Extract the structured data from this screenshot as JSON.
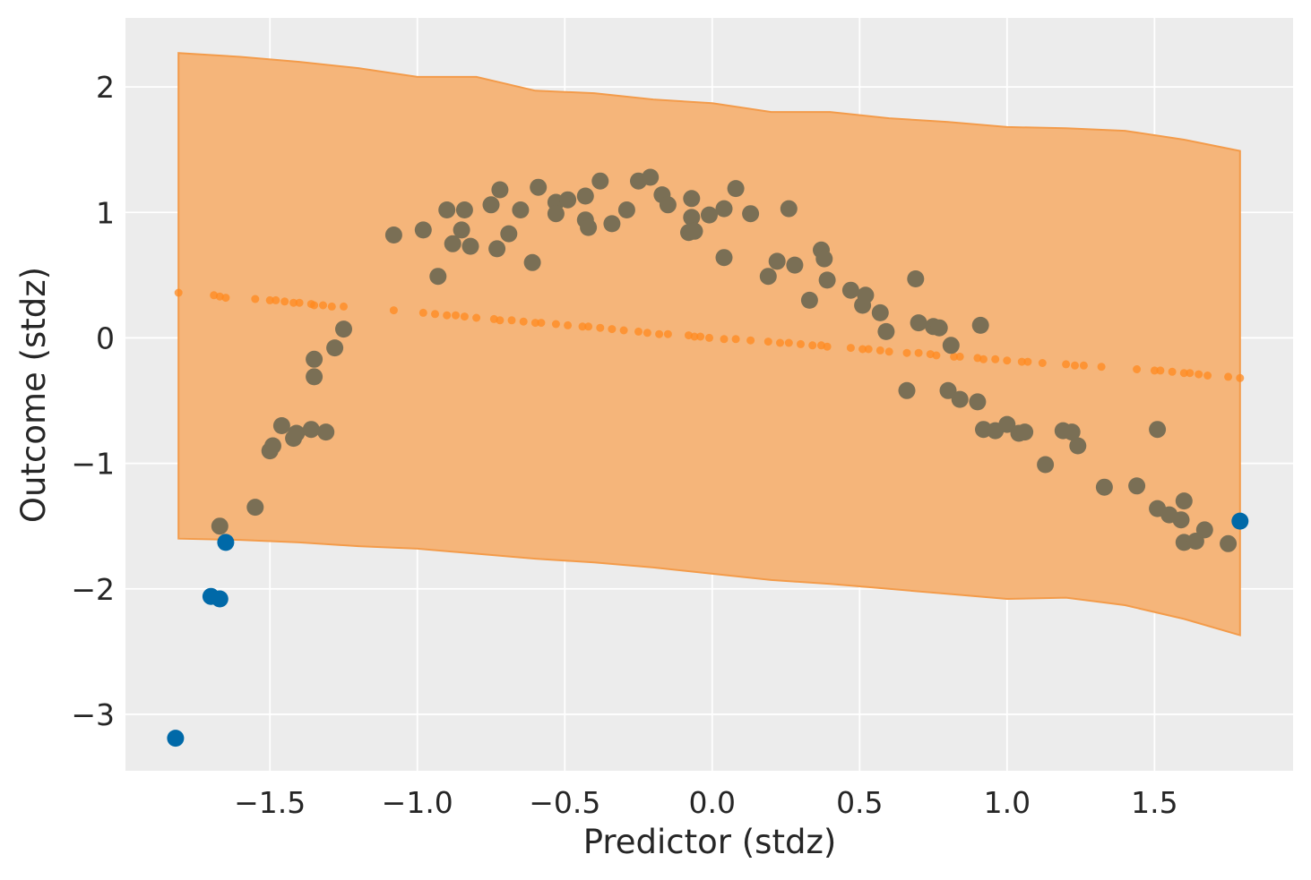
{
  "chart_data": {
    "type": "scatter",
    "xlabel": "Predictor (stdz)",
    "ylabel": "Outcome (stdz)",
    "xlim": [
      -1.99,
      1.97
    ],
    "ylim": [
      -3.45,
      2.55
    ],
    "x_ticks": [
      -1.5,
      -1.0,
      -0.5,
      0.0,
      0.5,
      1.0,
      1.5
    ],
    "x_tick_labels": [
      "−1.5",
      "−1.0",
      "−0.5",
      "0.0",
      "0.5",
      "1.0",
      "1.5"
    ],
    "y_ticks": [
      -3,
      -2,
      -1,
      0,
      1,
      2
    ],
    "y_tick_labels": [
      "−3",
      "−2",
      "−1",
      "0",
      "1",
      "2"
    ],
    "grid": true,
    "legend": "none",
    "colors": {
      "background": "#ececec",
      "grid": "#ffffff",
      "band_fill": "#f5b57a",
      "band_edge": "#f39b4a",
      "trend": "#ff8a1f",
      "points_inside": "#7a6f55",
      "points_outside": "#0069a8"
    },
    "interval": {
      "x": [
        -1.81,
        -1.6,
        -1.4,
        -1.2,
        -1.0,
        -0.8,
        -0.6,
        -0.4,
        -0.2,
        0.0,
        0.2,
        0.4,
        0.6,
        0.8,
        1.0,
        1.2,
        1.4,
        1.6,
        1.79
      ],
      "upper": [
        2.27,
        2.24,
        2.2,
        2.15,
        2.08,
        2.08,
        1.97,
        1.95,
        1.9,
        1.87,
        1.8,
        1.8,
        1.75,
        1.72,
        1.68,
        1.67,
        1.65,
        1.58,
        1.49
      ],
      "lower": [
        -1.6,
        -1.61,
        -1.63,
        -1.66,
        -1.68,
        -1.72,
        -1.76,
        -1.79,
        -1.83,
        -1.88,
        -1.93,
        -1.96,
        -2.0,
        -2.04,
        -2.08,
        -2.07,
        -2.13,
        -2.24,
        -2.37
      ]
    },
    "series": [
      {
        "role": "mean prediction",
        "x": [
          -1.81,
          -1.69,
          -1.67,
          -1.65,
          -1.55,
          -1.5,
          -1.48,
          -1.45,
          -1.42,
          -1.4,
          -1.36,
          -1.35,
          -1.32,
          -1.29,
          -1.25,
          -1.08,
          -0.98,
          -0.94,
          -0.9,
          -0.87,
          -0.84,
          -0.8,
          -0.74,
          -0.72,
          -0.68,
          -0.64,
          -0.6,
          -0.58,
          -0.53,
          -0.49,
          -0.44,
          -0.42,
          -0.38,
          -0.34,
          -0.3,
          -0.25,
          -0.22,
          -0.18,
          -0.15,
          -0.08,
          -0.06,
          -0.04,
          -0.01,
          0.04,
          0.08,
          0.13,
          0.19,
          0.23,
          0.26,
          0.3,
          0.34,
          0.37,
          0.39,
          0.47,
          0.51,
          0.53,
          0.57,
          0.6,
          0.66,
          0.7,
          0.74,
          0.76,
          0.82,
          0.84,
          0.9,
          0.92,
          0.96,
          1.0,
          1.05,
          1.07,
          1.12,
          1.2,
          1.23,
          1.26,
          1.32,
          1.44,
          1.5,
          1.52,
          1.56,
          1.6,
          1.62,
          1.65,
          1.68,
          1.75,
          1.79
        ],
        "y": [
          0.36,
          0.34,
          0.33,
          0.32,
          0.31,
          0.3,
          0.3,
          0.29,
          0.28,
          0.28,
          0.27,
          0.26,
          0.26,
          0.25,
          0.25,
          0.22,
          0.2,
          0.19,
          0.18,
          0.18,
          0.17,
          0.16,
          0.15,
          0.14,
          0.14,
          0.13,
          0.12,
          0.12,
          0.11,
          0.1,
          0.09,
          0.09,
          0.08,
          0.07,
          0.06,
          0.05,
          0.04,
          0.03,
          0.03,
          0.02,
          0.01,
          0.01,
          0.0,
          -0.01,
          -0.01,
          -0.02,
          -0.03,
          -0.04,
          -0.04,
          -0.05,
          -0.06,
          -0.06,
          -0.07,
          -0.08,
          -0.09,
          -0.09,
          -0.1,
          -0.11,
          -0.12,
          -0.12,
          -0.13,
          -0.14,
          -0.15,
          -0.15,
          -0.16,
          -0.17,
          -0.17,
          -0.18,
          -0.19,
          -0.19,
          -0.2,
          -0.21,
          -0.22,
          -0.22,
          -0.23,
          -0.25,
          -0.26,
          -0.26,
          -0.27,
          -0.28,
          -0.28,
          -0.29,
          -0.3,
          -0.31,
          -0.32
        ]
      },
      {
        "role": "observed (inside interval)",
        "x": [
          -1.67,
          -1.55,
          -1.5,
          -1.49,
          -1.46,
          -1.42,
          -1.41,
          -1.36,
          -1.35,
          -1.35,
          -1.31,
          -1.28,
          -1.25,
          -1.08,
          -0.98,
          -0.93,
          -0.9,
          -0.88,
          -0.85,
          -0.84,
          -0.82,
          -0.75,
          -0.73,
          -0.72,
          -0.69,
          -0.65,
          -0.61,
          -0.59,
          -0.53,
          -0.53,
          -0.49,
          -0.43,
          -0.43,
          -0.42,
          -0.38,
          -0.34,
          -0.29,
          -0.25,
          -0.21,
          -0.17,
          -0.15,
          -0.08,
          -0.07,
          -0.07,
          -0.07,
          -0.06,
          -0.01,
          0.04,
          0.04,
          0.08,
          0.13,
          0.19,
          0.22,
          0.26,
          0.28,
          0.33,
          0.37,
          0.38,
          0.39,
          0.47,
          0.51,
          0.52,
          0.57,
          0.59,
          0.66,
          0.69,
          0.7,
          0.75,
          0.77,
          0.8,
          0.81,
          0.84,
          0.9,
          0.91,
          0.92,
          0.96,
          1.0,
          1.04,
          1.06,
          1.13,
          1.19,
          1.22,
          1.24,
          1.33,
          1.44,
          1.51,
          1.51,
          1.55,
          1.59,
          1.6,
          1.6,
          1.64,
          1.67,
          1.75
        ],
        "y": [
          -1.5,
          -1.35,
          -0.9,
          -0.86,
          -0.7,
          -0.8,
          -0.76,
          -0.73,
          -0.17,
          -0.31,
          -0.75,
          -0.08,
          0.07,
          0.82,
          0.86,
          0.49,
          1.02,
          0.75,
          0.86,
          1.02,
          0.73,
          1.06,
          0.71,
          1.18,
          0.83,
          1.02,
          0.6,
          1.2,
          1.08,
          0.99,
          1.1,
          1.13,
          0.94,
          0.88,
          1.25,
          0.91,
          1.02,
          1.25,
          1.28,
          1.14,
          1.06,
          0.84,
          1.11,
          0.96,
          0.85,
          0.85,
          0.98,
          1.03,
          0.64,
          1.19,
          0.99,
          0.49,
          0.61,
          1.03,
          0.58,
          0.3,
          0.7,
          0.63,
          0.46,
          0.38,
          0.26,
          0.34,
          0.2,
          0.05,
          -0.42,
          0.47,
          0.12,
          0.09,
          0.08,
          -0.42,
          -0.06,
          -0.49,
          -0.51,
          0.1,
          -0.73,
          -0.74,
          -0.69,
          -0.76,
          -0.75,
          -1.01,
          -0.74,
          -0.75,
          -0.86,
          -1.19,
          -1.18,
          -1.36,
          -0.73,
          -1.41,
          -1.45,
          -1.63,
          -1.3,
          -1.62,
          -1.53,
          -1.64
        ]
      },
      {
        "role": "observed (outside interval)",
        "x": [
          -1.82,
          -1.7,
          -1.67,
          -1.65,
          1.79
        ],
        "y": [
          -3.19,
          -2.06,
          -2.08,
          -1.63,
          -1.46
        ]
      }
    ]
  }
}
